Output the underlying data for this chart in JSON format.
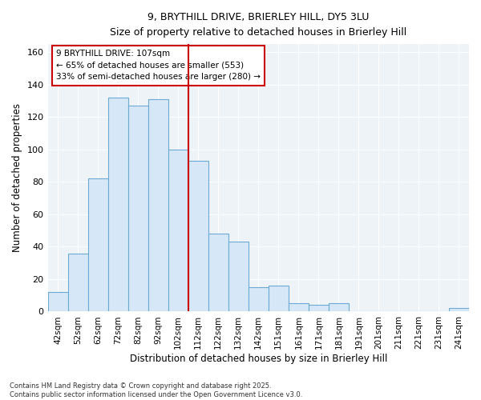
{
  "title1": "9, BRYTHILL DRIVE, BRIERLEY HILL, DY5 3LU",
  "title2": "Size of property relative to detached houses in Brierley Hill",
  "xlabel": "Distribution of detached houses by size in Brierley Hill",
  "ylabel": "Number of detached properties",
  "bar_color": "#d6e8f7",
  "bar_edge_color": "#6aaad4",
  "categories": [
    "42sqm",
    "52sqm",
    "62sqm",
    "72sqm",
    "82sqm",
    "92sqm",
    "102sqm",
    "112sqm",
    "122sqm",
    "132sqm",
    "142sqm",
    "151sqm",
    "161sqm",
    "171sqm",
    "181sqm",
    "191sqm",
    "201sqm",
    "211sqm",
    "221sqm",
    "231sqm",
    "241sqm"
  ],
  "values": [
    12,
    36,
    82,
    132,
    127,
    131,
    100,
    93,
    48,
    43,
    15,
    16,
    5,
    4,
    5,
    0,
    0,
    0,
    0,
    0,
    2
  ],
  "property_line_label": "9 BRYTHILL DRIVE: 107sqm",
  "annotation_line1": "← 65% of detached houses are smaller (553)",
  "annotation_line2": "33% of semi-detached houses are larger (280) →",
  "annotation_box_color": "#ffffff",
  "annotation_box_edge": "#cc0000",
  "line_color": "#cc0000",
  "prop_line_bin_index": 6,
  "ylim": [
    0,
    165
  ],
  "yticks": [
    0,
    20,
    40,
    60,
    80,
    100,
    120,
    140,
    160
  ],
  "footnote1": "Contains HM Land Registry data © Crown copyright and database right 2025.",
  "footnote2": "Contains public sector information licensed under the Open Government Licence v3.0.",
  "background_color": "#ffffff",
  "plot_bg_color": "#eef3f8",
  "grid_color": "#ffffff"
}
